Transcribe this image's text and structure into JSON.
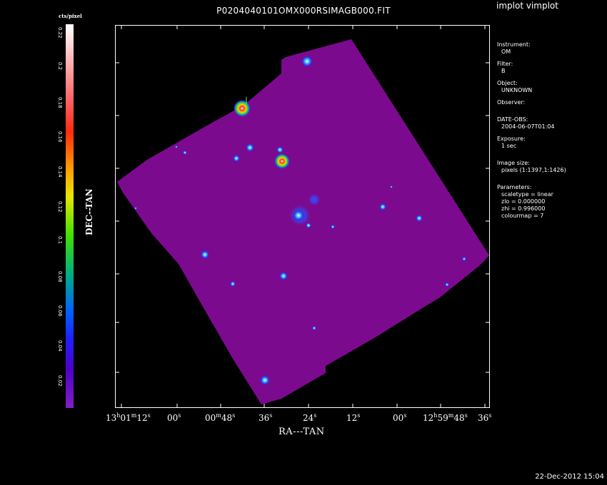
{
  "window": {
    "app_title": "implot vimplot"
  },
  "plot": {
    "title": "P0204040101OMX000RSIMAGB000.FIT",
    "colorbar": {
      "unit_label": "cts/pixel",
      "ticks": [
        "0.22",
        "0.2",
        "0.18",
        "0.16",
        "0.14",
        "0.12",
        "0.1",
        "0.08",
        "0.06",
        "0.04",
        "0.02"
      ]
    },
    "xlabel": "RA---TAN",
    "ylabel": "DEC--TAN",
    "xticks": [
      "13h01m12s",
      "00s",
      "00m48s",
      "36s",
      "24s",
      "12s",
      "00s",
      "12h59m48s",
      "36s"
    ],
    "colors": {
      "background": "#000000",
      "image_fill": "#7c0a8e",
      "axes": "#ffffff"
    }
  },
  "info_panel": {
    "instrument_label": "Instrument:",
    "instrument_value": "OM",
    "filter_label": "Filter:",
    "filter_value": "B",
    "object_label": "Object:",
    "object_value": "UNKNOWN",
    "observer_label": "Observer:",
    "date_obs_label": "DATE-OBS:",
    "date_obs_value": "2004-06-07T01:04",
    "exposure_label": "Exposure:",
    "exposure_value": "1 sec",
    "image_size_label": "Image size:",
    "image_size_value": "pixels (1:1397,1:1426)",
    "parameters_label": "Parameters:",
    "scaletype": "scaletype = linear",
    "zlo": "zlo = 0.000000",
    "zhi": "zhi = 0.996000",
    "colourmap": "colourmap =   7"
  },
  "footer": {
    "timestamp": "22-Dec-2012 15:04"
  }
}
